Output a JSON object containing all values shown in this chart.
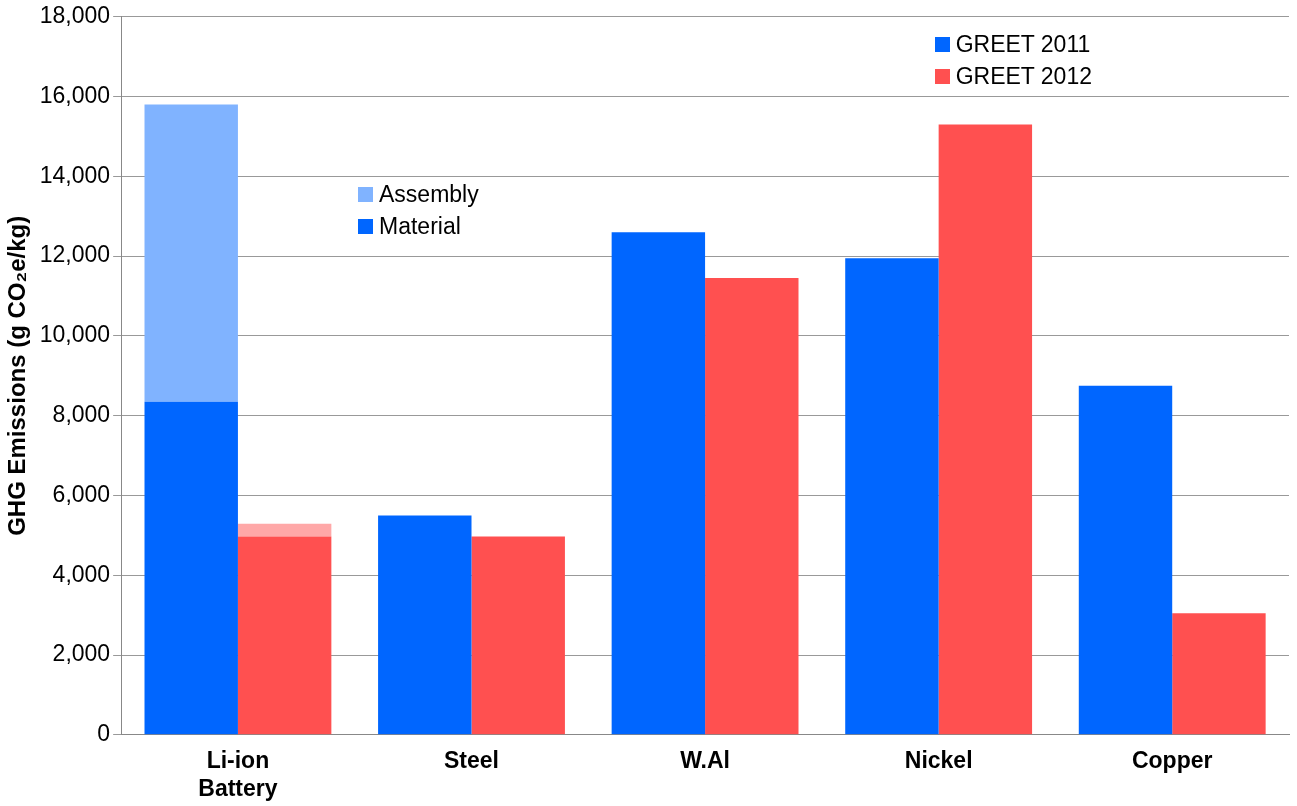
{
  "chart_data": {
    "type": "bar",
    "ylabel": "GHG Emissions (g CO₂e/kg)",
    "categories": [
      "Li-ion Battery",
      "Steel",
      "W.Al",
      "Nickel",
      "Copper"
    ],
    "ylim": [
      0,
      18000
    ],
    "yticks": [
      0,
      {
        "value": 2000,
        "label": "2,000"
      },
      {
        "value": 4000,
        "label": "4,000"
      },
      {
        "value": 6000,
        "label": "6,000"
      },
      {
        "value": 8000,
        "label": "8,000"
      },
      {
        "value": 10000,
        "label": "10,000"
      },
      {
        "value": 12000,
        "label": "12,000"
      },
      {
        "value": 14000,
        "label": "14,000"
      },
      {
        "value": 16000,
        "label": "16,000"
      },
      {
        "value": 18000,
        "label": "18,000"
      }
    ],
    "grid": "y",
    "legend": "top right",
    "series": [
      {
        "name": "GREET 2011",
        "color": "#0066ff",
        "values": [
          8350,
          5500,
          12600,
          11950,
          8750
        ]
      },
      {
        "name": "Assembly",
        "color": "#80b3ff",
        "base": [
          8350,
          null,
          null,
          null,
          null
        ],
        "values": [
          7450,
          null,
          null,
          null,
          null
        ]
      },
      {
        "name": "GREET 2012",
        "color": "#ff5050",
        "values": [
          4970,
          4970,
          11450,
          15300,
          3050
        ]
      },
      {
        "color": "#ffa8a8",
        "base": [
          4970,
          null,
          null,
          null,
          null
        ],
        "values": [
          320,
          null,
          null,
          null,
          null
        ]
      }
    ],
    "annotations": [
      "Material"
    ]
  }
}
